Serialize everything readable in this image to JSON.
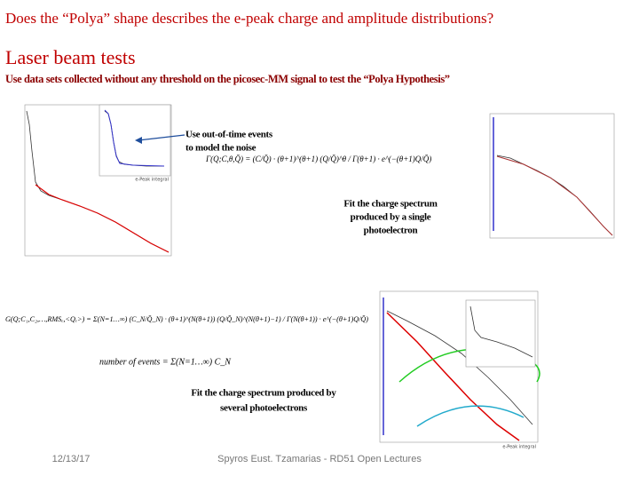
{
  "header": {
    "title": "Does the “Polya” shape describes the e-peak charge and amplitude distributions?",
    "heading": "Laser beam tests",
    "subtitle": "Use data sets collected without any threshold on the picosec-MM signal to test the “Polya Hypothesis”"
  },
  "annotations": {
    "noise": [
      "Use out-of-time events",
      "to model the noise"
    ],
    "single": [
      "Fit the charge spectrum",
      "produced by a single",
      "photoelectron"
    ],
    "several": [
      "Fit the charge spectrum produced by",
      "several photoelectrons"
    ]
  },
  "formulas": {
    "single": "Γ(Q;C,θ,Q̄) = (C/Q̄) · (θ+1)^(θ+1) (Q/Q̄)^θ / Γ(θ+1) · e^(−(θ+1)Q/Q̄)",
    "several": "G(Q;C₁,C₂,…,RMSₑ,<Qₑ>) = Σ(N=1…∞) (C_N/Q̄_N) · (θ+1)^(N(θ+1)) (Q/Q̄_N)^(N(θ+1)−1) / Γ(N(θ+1)) · e^(−(θ+1)Q/Q̄)",
    "count": "number of events = Σ(N=1…∞) C_N"
  },
  "plots": {
    "axis_label": "e-Peak integral"
  },
  "footer": {
    "date": "12/13/17",
    "credit": "Spyros Eust. Tzamarias - RD51 Open Lectures"
  }
}
